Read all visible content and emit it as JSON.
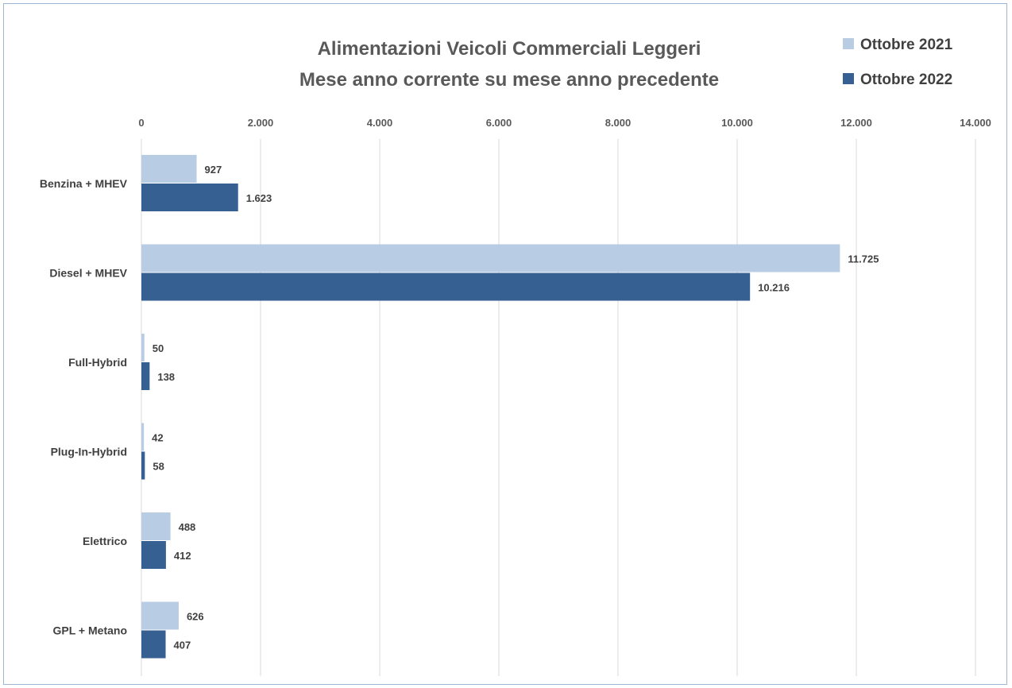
{
  "colors": {
    "series_2021": "#b8cce4",
    "series_2022": "#376092",
    "grid": "#d9d9d9",
    "frame": "#9fb6d3"
  },
  "chart_data": {
    "type": "bar",
    "orientation": "horizontal",
    "title": "Alimentazioni Veicoli Commerciali Leggeri",
    "subtitle": "Mese anno corrente su mese anno precedente",
    "categories": [
      "Benzina + MHEV",
      "Diesel + MHEV",
      "Full-Hybrid",
      "Plug-In-Hybrid",
      "Elettrico",
      "GPL + Metano"
    ],
    "series": [
      {
        "name": "Ottobre 2021",
        "values": [
          927,
          11725,
          50,
          42,
          488,
          626
        ],
        "labels": [
          "927",
          "11.725",
          "50",
          "42",
          "488",
          "626"
        ]
      },
      {
        "name": "Ottobre 2022",
        "values": [
          1623,
          10216,
          138,
          58,
          412,
          407
        ],
        "labels": [
          "1.623",
          "10.216",
          "138",
          "58",
          "412",
          "407"
        ]
      }
    ],
    "xlim": [
      0,
      14000
    ],
    "x_ticks": [
      0,
      2000,
      4000,
      6000,
      8000,
      10000,
      12000,
      14000
    ],
    "x_tick_labels": [
      "0",
      "2.000",
      "4.000",
      "6.000",
      "8.000",
      "10.000",
      "12.000",
      "14.000"
    ],
    "x_axis_position": "top",
    "grid": true,
    "legend_position": "top-right"
  }
}
